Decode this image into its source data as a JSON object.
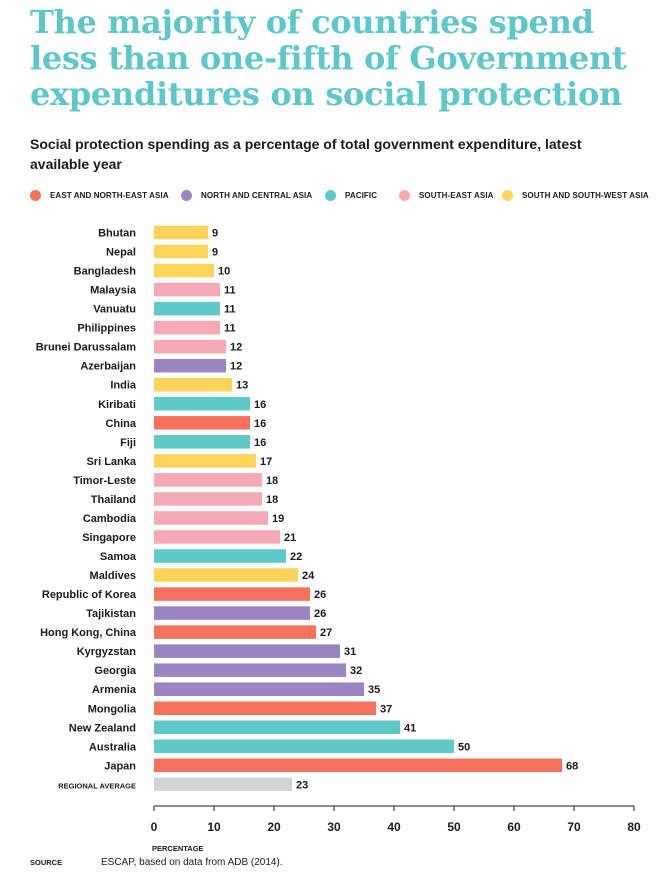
{
  "header": {
    "title": "The majority of countries spend less than one-fifth of Government expenditures on social protection",
    "subtitle": "Social protection spending as a percentage of total government expenditure, latest available year"
  },
  "legend": [
    {
      "label": "EAST AND NORTH-EAST ASIA",
      "color": "#f4725c"
    },
    {
      "label": "NORTH AND CENTRAL ASIA",
      "color": "#9b84c2"
    },
    {
      "label": "PACIFIC",
      "color": "#5fc8c9"
    },
    {
      "label": "SOUTH-EAST ASIA",
      "color": "#f6a9b5"
    },
    {
      "label": "SOUTH AND SOUTH-WEST ASIA",
      "color": "#fdd45a"
    }
  ],
  "chart_data": {
    "type": "bar",
    "orientation": "horizontal",
    "xlabel": "PERCENTAGE",
    "xlim": [
      0,
      80
    ],
    "xticks": [
      0,
      10,
      20,
      30,
      40,
      50,
      60,
      70,
      80
    ],
    "grid": false,
    "legend_position": "top",
    "categories": [
      "Bhutan",
      "Nepal",
      "Bangladesh",
      "Malaysia",
      "Vanuatu",
      "Philippines",
      "Brunei Darussalam",
      "Azerbaijan",
      "India",
      "Kiribati",
      "China",
      "Fiji",
      "Sri Lanka",
      "Timor-Leste",
      "Thailand",
      "Cambodia",
      "Singapore",
      "Samoa",
      "Maldives",
      "Republic of Korea",
      "Tajikistan",
      "Hong Kong, China",
      "Kyrgyzstan",
      "Georgia",
      "Armenia",
      "Mongolia",
      "New Zealand",
      "Australia",
      "Japan",
      "REGIONAL AVERAGE"
    ],
    "values": [
      9,
      9,
      10,
      11,
      11,
      11,
      12,
      12,
      13,
      16,
      16,
      16,
      17,
      18,
      18,
      19,
      21,
      22,
      24,
      26,
      26,
      27,
      31,
      32,
      35,
      37,
      41,
      50,
      68,
      23
    ],
    "groups": [
      "SOUTH AND SOUTH-WEST ASIA",
      "SOUTH AND SOUTH-WEST ASIA",
      "SOUTH AND SOUTH-WEST ASIA",
      "SOUTH-EAST ASIA",
      "PACIFIC",
      "SOUTH-EAST ASIA",
      "SOUTH-EAST ASIA",
      "NORTH AND CENTRAL ASIA",
      "SOUTH AND SOUTH-WEST ASIA",
      "PACIFIC",
      "EAST AND NORTH-EAST ASIA",
      "PACIFIC",
      "SOUTH AND SOUTH-WEST ASIA",
      "SOUTH-EAST ASIA",
      "SOUTH-EAST ASIA",
      "SOUTH-EAST ASIA",
      "SOUTH-EAST ASIA",
      "PACIFIC",
      "SOUTH AND SOUTH-WEST ASIA",
      "EAST AND NORTH-EAST ASIA",
      "NORTH AND CENTRAL ASIA",
      "EAST AND NORTH-EAST ASIA",
      "NORTH AND CENTRAL ASIA",
      "NORTH AND CENTRAL ASIA",
      "NORTH AND CENTRAL ASIA",
      "EAST AND NORTH-EAST ASIA",
      "PACIFIC",
      "PACIFIC",
      "EAST AND NORTH-EAST ASIA",
      "REGIONAL AVERAGE"
    ],
    "average_color": "#d2d3d5"
  },
  "footer": {
    "source_label": "SOURCE",
    "source_text": "ESCAP, based on data from ADB (2014)."
  },
  "colors": {
    "title": "#5cc8c9",
    "axis": "#1a1a1a"
  }
}
